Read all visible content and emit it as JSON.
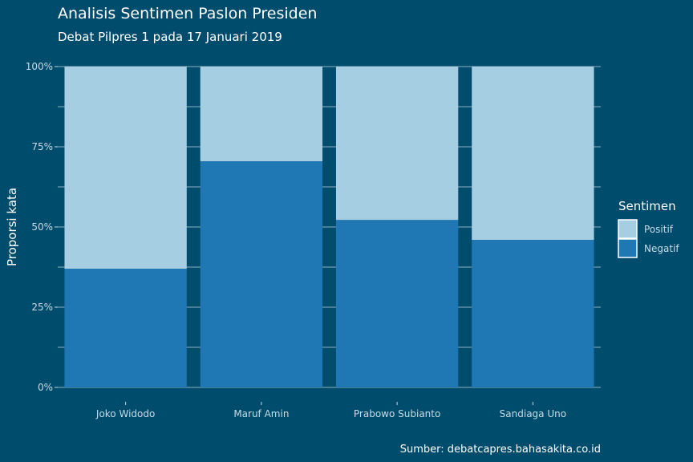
{
  "chart_data": {
    "type": "bar",
    "stacked": true,
    "title": "Analisis Sentimen Paslon Presiden",
    "subtitle": "Debat Pilpres 1 pada 17 Januari 2019",
    "ylabel": "Proporsi kata",
    "xlabel": "",
    "caption": "Sumber: debatcapres.bahasakita.co.id",
    "categories": [
      "Joko Widodo",
      "Maruf Amin",
      "Prabowo Subianto",
      "Sandiaga Uno"
    ],
    "series": [
      {
        "name": "Negatif",
        "values": [
          0.37,
          0.705,
          0.522,
          0.46
        ],
        "color": "#1f78b4"
      },
      {
        "name": "Positif",
        "values": [
          0.63,
          0.295,
          0.478,
          0.54
        ],
        "color": "#a6cee3"
      }
    ],
    "yticks": [
      {
        "value": 0,
        "label": "0%"
      },
      {
        "value": 0.25,
        "label": "25%"
      },
      {
        "value": 0.5,
        "label": "50%"
      },
      {
        "value": 0.75,
        "label": "75%"
      },
      {
        "value": 1,
        "label": "100%"
      }
    ],
    "ylim": [
      0,
      1
    ],
    "grid": true,
    "legend": {
      "title": "Sentimen",
      "placement": "right",
      "items": [
        "Positif",
        "Negatif"
      ]
    }
  },
  "colors": {
    "background": "#004c6d",
    "grid": "#6f9bb1",
    "axis_text": "#c6dbe6"
  }
}
